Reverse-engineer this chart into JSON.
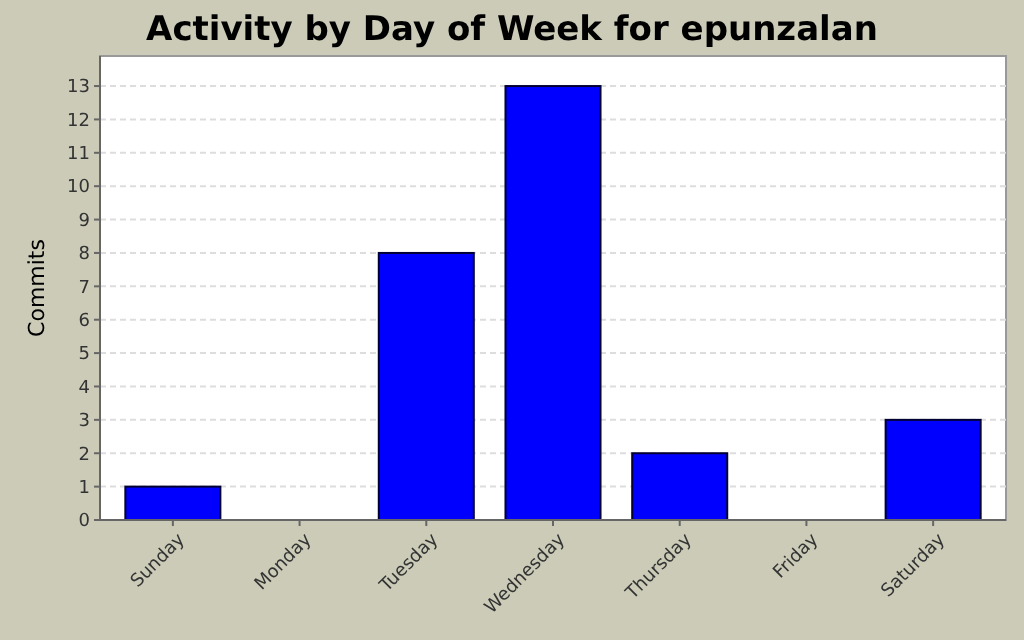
{
  "chart_data": {
    "type": "bar",
    "title": "Activity by Day of Week for epunzalan",
    "ylabel": "Commits",
    "categories": [
      "Sunday",
      "Monday",
      "Tuesday",
      "Wednesday",
      "Thursday",
      "Friday",
      "Saturday"
    ],
    "values": [
      1,
      0,
      8,
      13,
      2,
      0,
      3
    ],
    "color": "#0000ff",
    "ylim": [
      0,
      13.9
    ],
    "yticks": [
      0,
      1,
      2,
      3,
      4,
      5,
      6,
      7,
      8,
      9,
      10,
      11,
      12,
      13
    ],
    "grid": "y"
  }
}
